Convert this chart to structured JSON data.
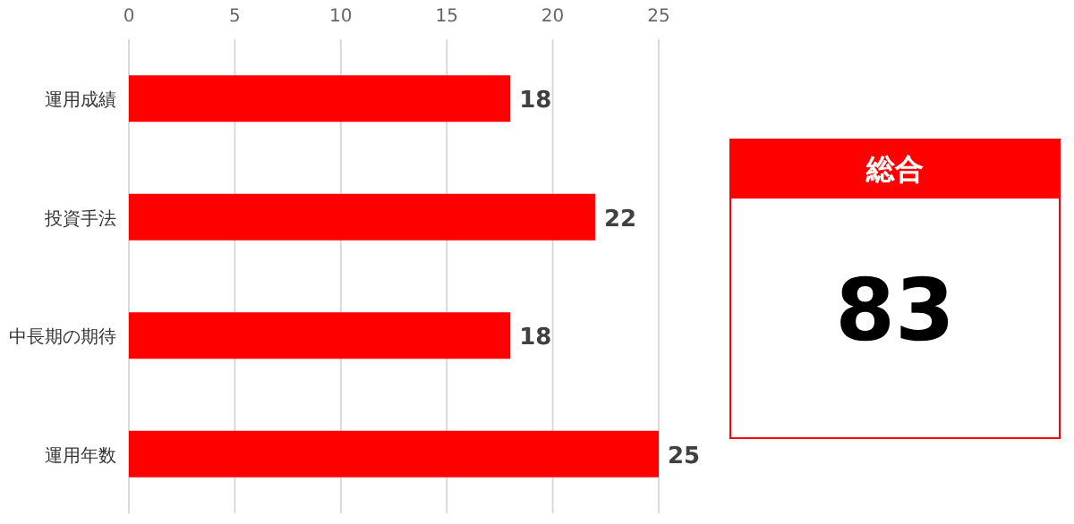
{
  "chart_data": [
    {
      "type": "bar",
      "orientation": "horizontal",
      "categories": [
        "運用成績",
        "投資手法",
        "中長期の期待",
        "運用年数"
      ],
      "series": [
        {
          "color": "#ff0000",
          "values": [
            18,
            22,
            18,
            25
          ]
        }
      ],
      "xlim": [
        0,
        25
      ],
      "xticks": [
        0,
        5,
        10,
        15,
        20,
        25
      ],
      "grid": "x",
      "data_labels": true
    },
    {
      "type": "other",
      "title": "総合",
      "annotations": [
        "83"
      ],
      "color": "#ff0000"
    }
  ]
}
